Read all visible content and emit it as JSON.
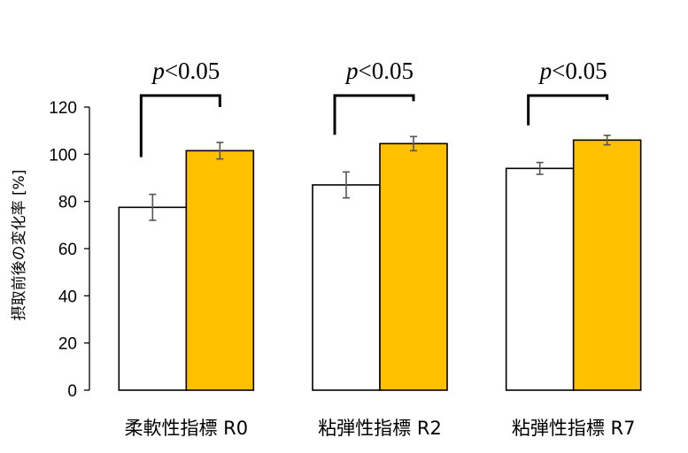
{
  "chart_data": {
    "type": "bar",
    "categories": [
      "柔軟性指標 R0",
      "粘弾性指標 R2",
      "粘弾性指標 R7"
    ],
    "series": [
      {
        "values": [
          77.5,
          87,
          94
        ],
        "errors": [
          5.5,
          5.5,
          2.5
        ],
        "color": "#ffffff"
      },
      {
        "values": [
          101.5,
          104.5,
          106
        ],
        "errors": [
          3.5,
          3,
          2
        ],
        "color": "#ffc000"
      }
    ],
    "ylabel": "摂取前後の変化率 [%]",
    "ylim": [
      0,
      120
    ],
    "yticks": [
      "0",
      "20",
      "40",
      "60",
      "80",
      "100",
      "120"
    ],
    "grid": false,
    "legend": "none",
    "annotations": [
      {
        "category": "柔軟性指標 R0",
        "p_symbol": "p",
        "text": "<0.05"
      },
      {
        "category": "粘弾性指標 R2",
        "p_symbol": "p",
        "text": "<0.05"
      },
      {
        "category": "粘弾性指標 R7",
        "p_symbol": "p",
        "text": "<0.05"
      }
    ]
  }
}
